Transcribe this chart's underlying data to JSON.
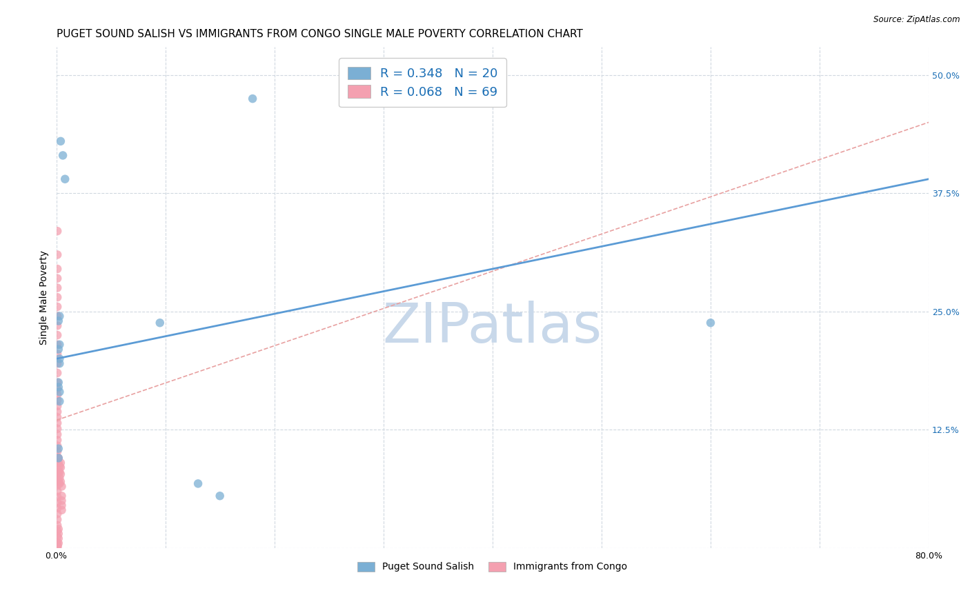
{
  "title": "PUGET SOUND SALISH VS IMMIGRANTS FROM CONGO SINGLE MALE POVERTY CORRELATION CHART",
  "source": "Source: ZipAtlas.com",
  "ylabel": "Single Male Poverty",
  "xlim": [
    0,
    0.8
  ],
  "ylim": [
    0,
    0.53
  ],
  "xticks": [
    0.0,
    0.1,
    0.2,
    0.3,
    0.4,
    0.5,
    0.6,
    0.7,
    0.8
  ],
  "xticklabels": [
    "0.0%",
    "",
    "",
    "",
    "",
    "",
    "",
    "",
    "80.0%"
  ],
  "yticks": [
    0.0,
    0.125,
    0.25,
    0.375,
    0.5
  ],
  "yticklabels": [
    "",
    "12.5%",
    "25.0%",
    "37.5%",
    "50.0%"
  ],
  "series1_name": "Puget Sound Salish",
  "series1_color": "#7bafd4",
  "series1_R": 0.348,
  "series1_N": 20,
  "series1_x": [
    0.004,
    0.006,
    0.008,
    0.003,
    0.002,
    0.002,
    0.003,
    0.003,
    0.002,
    0.002,
    0.003,
    0.003,
    0.002,
    0.002,
    0.003,
    0.18,
    0.095,
    0.6,
    0.13,
    0.15
  ],
  "series1_y": [
    0.43,
    0.415,
    0.39,
    0.245,
    0.24,
    0.21,
    0.2,
    0.195,
    0.175,
    0.17,
    0.165,
    0.155,
    0.105,
    0.095,
    0.215,
    0.475,
    0.238,
    0.238,
    0.068,
    0.055
  ],
  "series2_name": "Immigrants from Congo",
  "series2_color": "#f4a0b0",
  "series2_R": 0.068,
  "series2_N": 69,
  "series2_x": [
    0.001,
    0.001,
    0.001,
    0.001,
    0.001,
    0.001,
    0.001,
    0.001,
    0.001,
    0.001,
    0.001,
    0.001,
    0.001,
    0.001,
    0.001,
    0.001,
    0.001,
    0.001,
    0.001,
    0.001,
    0.001,
    0.001,
    0.001,
    0.001,
    0.001,
    0.001,
    0.001,
    0.001,
    0.001,
    0.001,
    0.001,
    0.001,
    0.001,
    0.001,
    0.001,
    0.001,
    0.001,
    0.001,
    0.001,
    0.001,
    0.001,
    0.001,
    0.001,
    0.001,
    0.001,
    0.002,
    0.002,
    0.002,
    0.002,
    0.002,
    0.002,
    0.002,
    0.002,
    0.003,
    0.003,
    0.003,
    0.003,
    0.004,
    0.004,
    0.004,
    0.004,
    0.005,
    0.005,
    0.005,
    0.005,
    0.005,
    0.001,
    0.001,
    0.001
  ],
  "series2_y": [
    0.335,
    0.31,
    0.295,
    0.285,
    0.275,
    0.265,
    0.255,
    0.245,
    0.235,
    0.225,
    0.215,
    0.205,
    0.195,
    0.185,
    0.175,
    0.168,
    0.162,
    0.156,
    0.15,
    0.144,
    0.138,
    0.132,
    0.126,
    0.12,
    0.114,
    0.108,
    0.102,
    0.096,
    0.09,
    0.084,
    0.078,
    0.072,
    0.066,
    0.06,
    0.054,
    0.048,
    0.042,
    0.036,
    0.03,
    0.024,
    0.018,
    0.012,
    0.006,
    0.002,
    0.001,
    0.02,
    0.015,
    0.01,
    0.005,
    0.07,
    0.09,
    0.08,
    0.095,
    0.068,
    0.074,
    0.08,
    0.086,
    0.07,
    0.078,
    0.085,
    0.09,
    0.065,
    0.055,
    0.05,
    0.045,
    0.04,
    0.003,
    0.003,
    0.001
  ],
  "trend1_x0": 0.0,
  "trend1_y0": 0.2,
  "trend1_x1": 0.8,
  "trend1_y1": 0.39,
  "trend2_x0": 0.0,
  "trend2_y0": 0.135,
  "trend2_x1": 0.8,
  "trend2_y1": 0.45,
  "trend1_color": "#5b9bd5",
  "trend2_color": "#e8a0a0",
  "watermark": "ZIPatlas",
  "watermark_color": "#c8d8ea",
  "legend_R_color": "#1a6eb5",
  "background_color": "#ffffff",
  "grid_color": "#d0d8e0",
  "title_fontsize": 11,
  "axis_label_fontsize": 10,
  "tick_fontsize": 9,
  "marker_size": 9
}
